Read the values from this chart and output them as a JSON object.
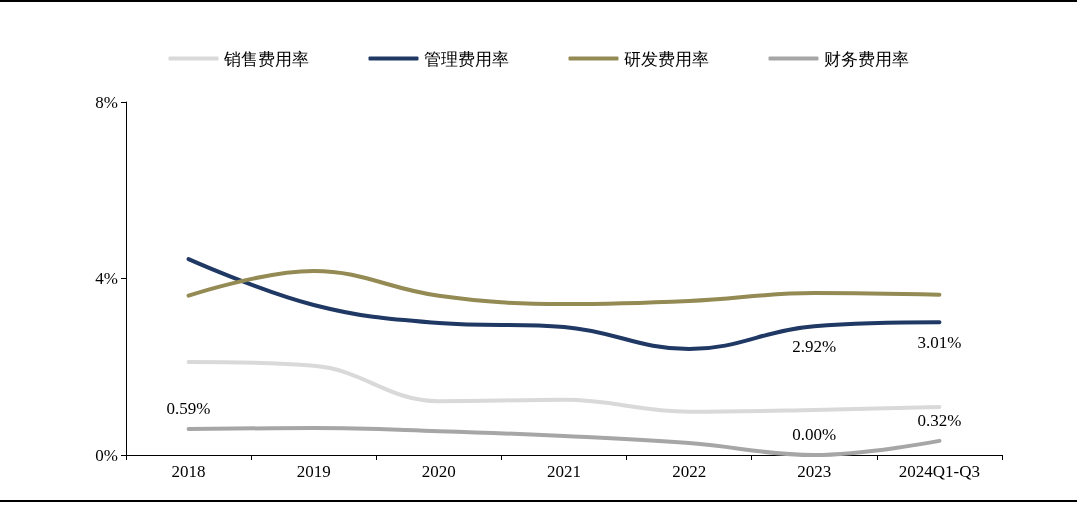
{
  "chart_data": {
    "type": "line",
    "categories": [
      "2018",
      "2019",
      "2020",
      "2021",
      "2022",
      "2023",
      "2024Q1-Q3"
    ],
    "series": [
      {
        "name": "销售费用率",
        "color": "#d9d9d9",
        "values": [
          2.11,
          2.02,
          1.22,
          1.25,
          0.98,
          1.02,
          1.09
        ]
      },
      {
        "name": "管理费用率",
        "color": "#1f3864",
        "values": [
          4.44,
          3.4,
          2.99,
          2.9,
          2.4,
          2.92,
          3.01
        ],
        "value_labels": [
          null,
          null,
          null,
          null,
          null,
          "2.92%",
          "3.01%"
        ]
      },
      {
        "name": "研发费用率",
        "color": "#948a54",
        "values": [
          3.61,
          4.17,
          3.61,
          3.42,
          3.49,
          3.67,
          3.63
        ]
      },
      {
        "name": "财务费用率",
        "color": "#a6a6a6",
        "values": [
          0.59,
          0.61,
          0.54,
          0.43,
          0.27,
          0.0,
          0.32
        ],
        "value_labels": [
          "0.59%",
          null,
          null,
          null,
          null,
          "0.00%",
          "0.32%"
        ]
      }
    ],
    "ylim": [
      0,
      8
    ],
    "yticks": [
      {
        "value": 0,
        "label": "0%"
      },
      {
        "value": 4,
        "label": "4%"
      },
      {
        "value": 8,
        "label": "8%"
      }
    ],
    "grid": false,
    "legend": "top",
    "marker": "none",
    "line_style": "solid"
  }
}
